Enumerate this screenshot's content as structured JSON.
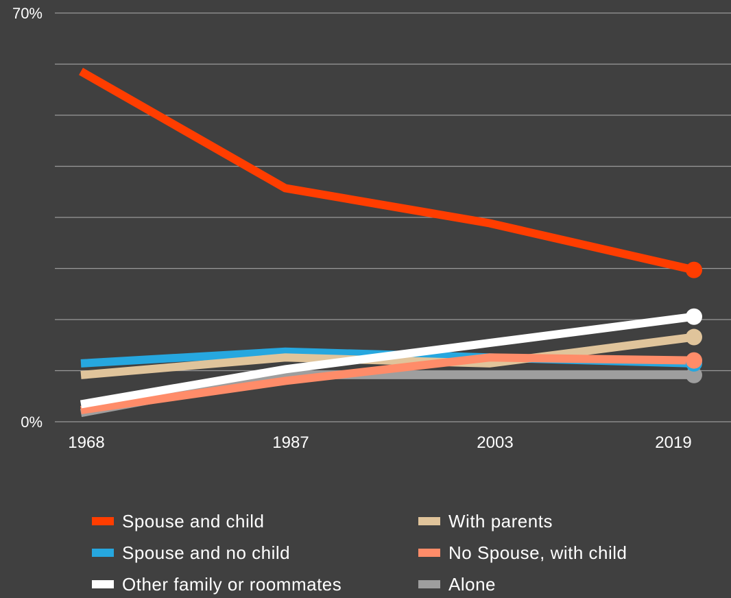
{
  "chart_data": {
    "type": "line",
    "x": [
      "1968",
      "1987",
      "2003",
      "2019"
    ],
    "ylim": [
      0,
      70
    ],
    "y_ticks": [
      0,
      70
    ],
    "y_tick_labels": [
      "0%",
      "70%"
    ],
    "grid_lines": 8,
    "series": [
      {
        "name": "Spouse and child",
        "color": "#ff3d00",
        "values": [
          60,
          40,
          34,
          26
        ]
      },
      {
        "name": "Spouse and no child",
        "color": "#26a7df",
        "values": [
          10,
          12,
          11,
          10
        ]
      },
      {
        "name": "Other family or roommates",
        "color": "#ffffff",
        "values": [
          3,
          9,
          13.5,
          18
        ]
      },
      {
        "name": "With parents",
        "color": "#e0c49b",
        "values": [
          8,
          11,
          10,
          14.5
        ]
      },
      {
        "name": "No Spouse, with child",
        "color": "#ff8c69",
        "values": [
          2,
          7,
          11,
          10.5
        ]
      },
      {
        "name": "Alone",
        "color": "#9e9e9e",
        "values": [
          1.5,
          8,
          8,
          8
        ]
      }
    ]
  }
}
